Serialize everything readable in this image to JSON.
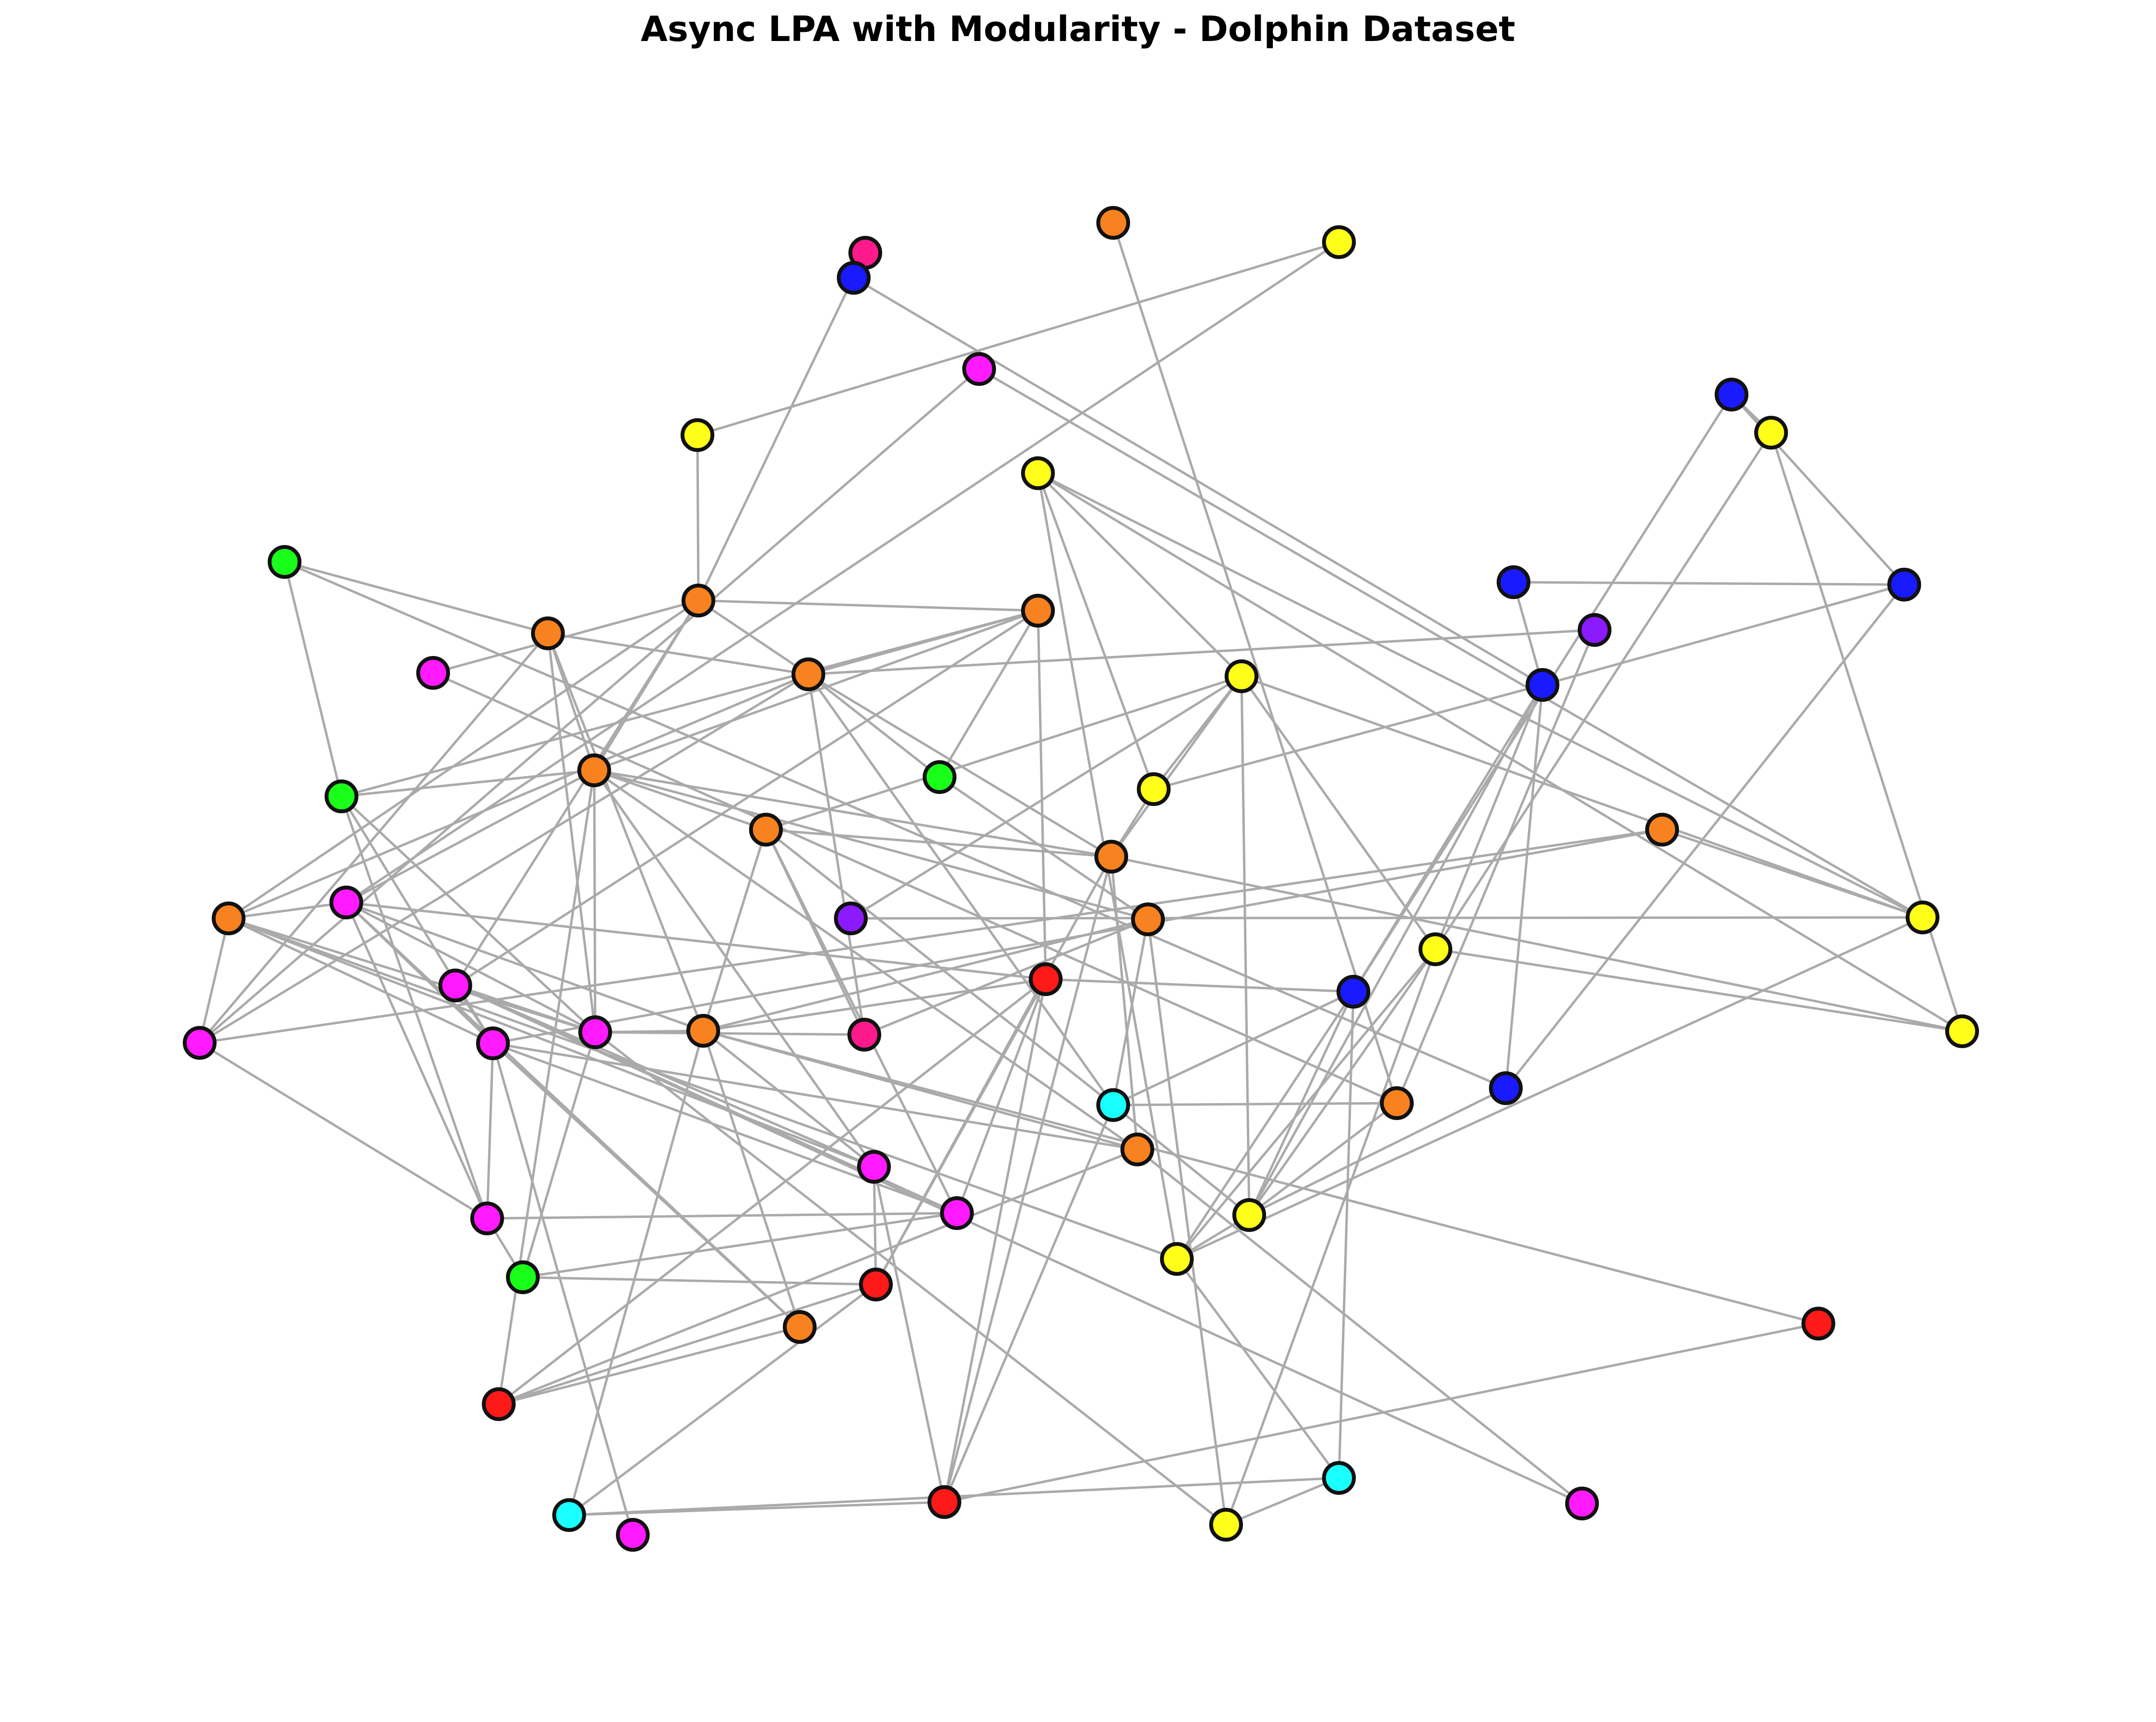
{
  "title": "Async LPA with Modularity - Dolphin Dataset",
  "colors": {
    "edge": "#aaaaaa",
    "node_outline": "#111111",
    "communities": {
      "orange": "#f7821f",
      "yellow": "#ffff1a",
      "blue": "#1a1aff",
      "magenta": "#ff1aff",
      "red": "#ff1a1a",
      "green": "#1aff1a",
      "cyan": "#1affff",
      "purple": "#8c1aff",
      "pink": "#ff1a8c"
    }
  },
  "graph": {
    "nodes": [
      {
        "id": "n1",
        "community": "orange"
      },
      {
        "id": "n2",
        "community": "pink"
      },
      {
        "id": "n3",
        "community": "blue"
      },
      {
        "id": "n4",
        "community": "yellow"
      },
      {
        "id": "n5",
        "community": "magenta"
      },
      {
        "id": "n6",
        "community": "yellow"
      },
      {
        "id": "n7",
        "community": "blue"
      },
      {
        "id": "n8",
        "community": "yellow"
      },
      {
        "id": "n9",
        "community": "yellow"
      },
      {
        "id": "n10",
        "community": "green"
      },
      {
        "id": "n11",
        "community": "orange"
      },
      {
        "id": "n12",
        "community": "orange"
      },
      {
        "id": "n13",
        "community": "orange"
      },
      {
        "id": "n14",
        "community": "blue"
      },
      {
        "id": "n15",
        "community": "blue"
      },
      {
        "id": "n16",
        "community": "purple"
      },
      {
        "id": "n17",
        "community": "magenta"
      },
      {
        "id": "n18",
        "community": "orange"
      },
      {
        "id": "n19",
        "community": "yellow"
      },
      {
        "id": "n20",
        "community": "blue"
      },
      {
        "id": "n21",
        "community": "green"
      },
      {
        "id": "n22",
        "community": "orange"
      },
      {
        "id": "n23",
        "community": "green"
      },
      {
        "id": "n24",
        "community": "yellow"
      },
      {
        "id": "n25",
        "community": "orange"
      },
      {
        "id": "n26",
        "community": "yellow"
      },
      {
        "id": "n27",
        "community": "orange"
      },
      {
        "id": "n28",
        "community": "orange"
      },
      {
        "id": "n29",
        "community": "magenta"
      },
      {
        "id": "n30",
        "community": "purple"
      },
      {
        "id": "n31",
        "community": "orange"
      },
      {
        "id": "n32",
        "community": "yellow"
      },
      {
        "id": "n33",
        "community": "yellow"
      },
      {
        "id": "n34",
        "community": "magenta"
      },
      {
        "id": "n35",
        "community": "red"
      },
      {
        "id": "n36",
        "community": "blue"
      },
      {
        "id": "n37",
        "community": "magenta"
      },
      {
        "id": "n38",
        "community": "blue"
      },
      {
        "id": "n39",
        "community": "magenta"
      },
      {
        "id": "n40",
        "community": "orange"
      },
      {
        "id": "n41",
        "community": "pink"
      },
      {
        "id": "n42",
        "community": "orange"
      },
      {
        "id": "n43",
        "community": "cyan"
      },
      {
        "id": "n44",
        "community": "orange"
      },
      {
        "id": "n45",
        "community": "orange"
      },
      {
        "id": "n46",
        "community": "magenta"
      },
      {
        "id": "n47",
        "community": "magenta"
      },
      {
        "id": "n48",
        "community": "magenta"
      },
      {
        "id": "n49",
        "community": "yellow"
      },
      {
        "id": "n50",
        "community": "yellow"
      },
      {
        "id": "n51",
        "community": "green"
      },
      {
        "id": "n52",
        "community": "red"
      },
      {
        "id": "n53",
        "community": "magenta"
      },
      {
        "id": "n54",
        "community": "orange"
      },
      {
        "id": "n55",
        "community": "red"
      },
      {
        "id": "n56",
        "community": "red"
      },
      {
        "id": "n57",
        "community": "red"
      },
      {
        "id": "n58",
        "community": "magenta"
      },
      {
        "id": "n59",
        "community": "cyan"
      },
      {
        "id": "n60",
        "community": "yellow"
      },
      {
        "id": "n61",
        "community": "cyan"
      },
      {
        "id": "n62",
        "community": "magenta"
      }
    ],
    "edges": [
      [
        "n2",
        "n12"
      ],
      [
        "n3",
        "n20"
      ],
      [
        "n1",
        "n44"
      ],
      [
        "n6",
        "n12"
      ],
      [
        "n6",
        "n4"
      ],
      [
        "n4",
        "n29"
      ],
      [
        "n7",
        "n8"
      ],
      [
        "n7",
        "n14"
      ],
      [
        "n7",
        "n36"
      ],
      [
        "n8",
        "n26"
      ],
      [
        "n8",
        "n33"
      ],
      [
        "n14",
        "n15"
      ],
      [
        "n14",
        "n20"
      ],
      [
        "n14",
        "n38"
      ],
      [
        "n20",
        "n15"
      ],
      [
        "n20",
        "n24"
      ],
      [
        "n20",
        "n26"
      ],
      [
        "n20",
        "n36"
      ],
      [
        "n20",
        "n38"
      ],
      [
        "n20",
        "n49"
      ],
      [
        "n9",
        "n24"
      ],
      [
        "n9",
        "n33"
      ],
      [
        "n9",
        "n19"
      ],
      [
        "n9",
        "n32"
      ],
      [
        "n9",
        "n50"
      ],
      [
        "n10",
        "n11"
      ],
      [
        "n10",
        "n21"
      ],
      [
        "n11",
        "n13"
      ],
      [
        "n11",
        "n22"
      ],
      [
        "n11",
        "n39"
      ],
      [
        "n11",
        "n40"
      ],
      [
        "n11",
        "n46"
      ],
      [
        "n12",
        "n13"
      ],
      [
        "n12",
        "n17"
      ],
      [
        "n12",
        "n18"
      ],
      [
        "n12",
        "n22"
      ],
      [
        "n12",
        "n28"
      ],
      [
        "n12",
        "n34"
      ],
      [
        "n13",
        "n16"
      ],
      [
        "n13",
        "n18"
      ],
      [
        "n13",
        "n28"
      ],
      [
        "n13",
        "n31"
      ],
      [
        "n13",
        "n41"
      ],
      [
        "n13",
        "n23"
      ],
      [
        "n13",
        "n46"
      ],
      [
        "n13",
        "n43"
      ],
      [
        "n18",
        "n21"
      ],
      [
        "n18",
        "n22"
      ],
      [
        "n18",
        "n23"
      ],
      [
        "n18",
        "n34"
      ],
      [
        "n18",
        "n35"
      ],
      [
        "n19",
        "n24"
      ],
      [
        "n19",
        "n26"
      ],
      [
        "n19",
        "n27"
      ],
      [
        "n19",
        "n30"
      ],
      [
        "n19",
        "n31"
      ],
      [
        "n19",
        "n49"
      ],
      [
        "n19",
        "n32"
      ],
      [
        "n21",
        "n22"
      ],
      [
        "n21",
        "n37"
      ],
      [
        "n21",
        "n39"
      ],
      [
        "n21",
        "n48"
      ],
      [
        "n22",
        "n27"
      ],
      [
        "n22",
        "n29"
      ],
      [
        "n22",
        "n31"
      ],
      [
        "n22",
        "n42"
      ],
      [
        "n22",
        "n45"
      ],
      [
        "n22",
        "n47"
      ],
      [
        "n22",
        "n56"
      ],
      [
        "n23",
        "n42"
      ],
      [
        "n25",
        "n32"
      ],
      [
        "n25",
        "n37"
      ],
      [
        "n25",
        "n46"
      ],
      [
        "n26",
        "n33"
      ],
      [
        "n26",
        "n49"
      ],
      [
        "n26",
        "n50"
      ],
      [
        "n26",
        "n60"
      ],
      [
        "n27",
        "n31"
      ],
      [
        "n27",
        "n40"
      ],
      [
        "n27",
        "n41"
      ],
      [
        "n27",
        "n43"
      ],
      [
        "n27",
        "n53"
      ],
      [
        "n28",
        "n29"
      ],
      [
        "n28",
        "n37"
      ],
      [
        "n28",
        "n39"
      ],
      [
        "n28",
        "n46"
      ],
      [
        "n28",
        "n47"
      ],
      [
        "n28",
        "n50"
      ],
      [
        "n29",
        "n35"
      ],
      [
        "n29",
        "n37"
      ],
      [
        "n29",
        "n39"
      ],
      [
        "n29",
        "n40"
      ],
      [
        "n29",
        "n48"
      ],
      [
        "n29",
        "n54"
      ],
      [
        "n29",
        "n37"
      ],
      [
        "n31",
        "n33"
      ],
      [
        "n31",
        "n45"
      ],
      [
        "n31",
        "n52"
      ],
      [
        "n31",
        "n57"
      ],
      [
        "n32",
        "n50"
      ],
      [
        "n34",
        "n37"
      ],
      [
        "n34",
        "n39"
      ],
      [
        "n34",
        "n47"
      ],
      [
        "n34",
        "n53"
      ],
      [
        "n34",
        "n58"
      ],
      [
        "n35",
        "n36"
      ],
      [
        "n35",
        "n40"
      ],
      [
        "n35",
        "n53"
      ],
      [
        "n35",
        "n56"
      ],
      [
        "n35",
        "n57"
      ],
      [
        "n35",
        "n52"
      ],
      [
        "n36",
        "n49"
      ],
      [
        "n36",
        "n50"
      ],
      [
        "n36",
        "n61"
      ],
      [
        "n37",
        "n45"
      ],
      [
        "n37",
        "n48"
      ],
      [
        "n37",
        "n53"
      ],
      [
        "n37",
        "n54"
      ],
      [
        "n37",
        "n62"
      ],
      [
        "n38",
        "n49"
      ],
      [
        "n39",
        "n40"
      ],
      [
        "n39",
        "n41"
      ],
      [
        "n39",
        "n51"
      ],
      [
        "n39",
        "n60"
      ],
      [
        "n40",
        "n42"
      ],
      [
        "n40",
        "n45"
      ],
      [
        "n40",
        "n47"
      ],
      [
        "n40",
        "n54"
      ],
      [
        "n40",
        "n55"
      ],
      [
        "n40",
        "n59"
      ],
      [
        "n41",
        "n42"
      ],
      [
        "n42",
        "n43"
      ],
      [
        "n42",
        "n60"
      ],
      [
        "n43",
        "n44"
      ],
      [
        "n43",
        "n49"
      ],
      [
        "n43",
        "n57"
      ],
      [
        "n44",
        "n49"
      ],
      [
        "n45",
        "n56"
      ],
      [
        "n45",
        "n58"
      ],
      [
        "n46",
        "n48"
      ],
      [
        "n47",
        "n57"
      ],
      [
        "n47",
        "n52"
      ],
      [
        "n48",
        "n51"
      ],
      [
        "n48",
        "n53"
      ],
      [
        "n49",
        "n50"
      ],
      [
        "n50",
        "n61"
      ],
      [
        "n51",
        "n52"
      ],
      [
        "n52",
        "n56"
      ],
      [
        "n52",
        "n59"
      ],
      [
        "n54",
        "n56"
      ],
      [
        "n55",
        "n57"
      ],
      [
        "n57",
        "n59"
      ],
      [
        "n59",
        "n61"
      ],
      [
        "n60",
        "n61"
      ],
      [
        "n5",
        "n46"
      ],
      [
        "n16",
        "n44"
      ],
      [
        "n17",
        "n44"
      ],
      [
        "n10",
        "n38"
      ],
      [
        "n24",
        "n31"
      ],
      [
        "n51",
        "n53"
      ],
      [
        "n5",
        "n32"
      ],
      [
        "n30",
        "n32"
      ],
      [
        "n22",
        "n39"
      ],
      [
        "n36",
        "n43"
      ]
    ]
  }
}
